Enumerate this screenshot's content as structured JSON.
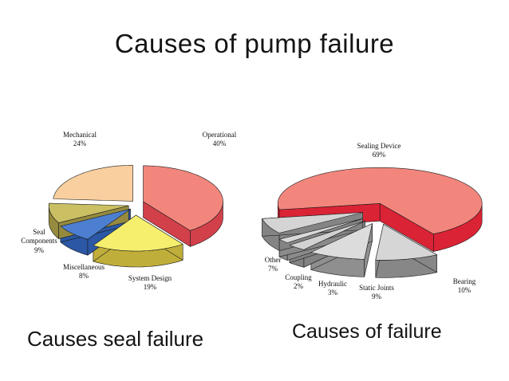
{
  "slide": {
    "title": "Causes of pump failure",
    "left_caption": "Causes seal failure",
    "right_caption": "Causes of failure"
  },
  "chart_data": [
    {
      "type": "pie",
      "style": "3d-exploded",
      "title": "Causes seal failure",
      "start_angle": 90,
      "direction": "clockwise",
      "slices": [
        {
          "name": "Operational",
          "pct": 40,
          "pct_display": "40%",
          "color_top": "#f2867d",
          "color_side": "#d2404a",
          "explode": 10
        },
        {
          "name": "System Design",
          "pct": 19,
          "pct_display": "19%",
          "color_top": "#f6ef6e",
          "color_side": "#c0ae3a",
          "explode": 14
        },
        {
          "name": "Miscellaneous",
          "pct": 8,
          "pct_display": "8%",
          "color_top": "#4d7fd0",
          "color_side": "#2b57a4",
          "explode": 9
        },
        {
          "name": "Seal Components",
          "pct": 9,
          "pct_display": "9%",
          "color_top": "#cabf63",
          "color_side": "#958a3e",
          "explode": 9
        },
        {
          "name": "Mechanical",
          "pct": 24,
          "pct_display": "24%",
          "color_top": "#f9cf9f",
          "color_side": "#e0a36b",
          "explode": 5
        }
      ]
    },
    {
      "type": "pie",
      "style": "3d-exploded",
      "title": "Causes of failure",
      "start_angle": 190,
      "direction": "clockwise",
      "slices": [
        {
          "name": "Sealing Device",
          "pct": 69,
          "pct_display": "69%",
          "color_top": "#f2867d",
          "color_side": "#da2335",
          "explode": 3
        },
        {
          "name": "Bearing",
          "pct": 10,
          "pct_display": "10%",
          "color_top": "#d6d6d6",
          "color_side": "#878787",
          "explode": 24
        },
        {
          "name": "Static Joints",
          "pct": 9,
          "pct_display": "9%",
          "color_top": "#dcdcdc",
          "color_side": "#8f8f8f",
          "explode": 24
        },
        {
          "name": "Hydraulic",
          "pct": 3,
          "pct_display": "3%",
          "color_top": "#d2d2d2",
          "color_side": "#828282",
          "explode": 26
        },
        {
          "name": "Coupling",
          "pct": 2,
          "pct_display": "2%",
          "color_top": "#d9d9d9",
          "color_side": "#8a8a8a",
          "explode": 26
        },
        {
          "name": "Other",
          "pct": 7,
          "pct_display": "7%",
          "color_top": "#d4d4d4",
          "color_side": "#848484",
          "explode": 22
        }
      ]
    }
  ]
}
